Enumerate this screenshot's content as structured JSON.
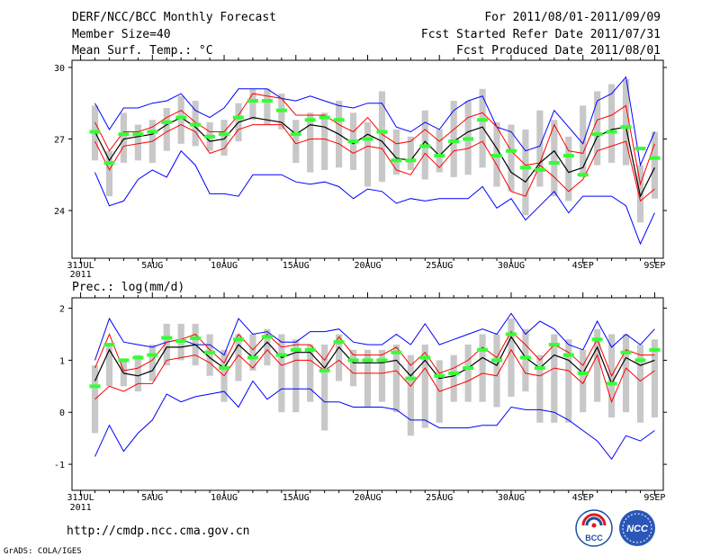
{
  "header": {
    "title": "DERF/NCC/BCC Monthly Forecast",
    "member_size": "Member Size=40",
    "variable": "Mean Surf. Temp.: °C",
    "period": "For 2011/08/01-2011/09/09",
    "started": "Fcst Started Refer Date 2011/07/31",
    "produced": "Fcst Produced Date 2011/08/01"
  },
  "footer": {
    "url": "http://cmdp.ncc.cma.gov.cn",
    "credit": "GrADS: COLA/IGES",
    "logo_bcc": "BCC",
    "logo_ncc": "NCC"
  },
  "colors": {
    "frame": "#000000",
    "bar": "#c8c8c8",
    "mean": "#000000",
    "envelope": "#0000ff",
    "spread": "#ff0000",
    "median": "#33ff33"
  },
  "chart_data": [
    {
      "type": "line",
      "title": "Mean Surf. Temp.: °C",
      "x_start_day": 0,
      "x_labels": [
        {
          "day": 0,
          "text": "31JUL",
          "sub": "2011"
        },
        {
          "day": 5,
          "text": "5AUG"
        },
        {
          "day": 10,
          "text": "10AUG"
        },
        {
          "day": 15,
          "text": "15AUG"
        },
        {
          "day": 20,
          "text": "20AUG"
        },
        {
          "day": 25,
          "text": "25AUG"
        },
        {
          "day": 30,
          "text": "30AUG"
        },
        {
          "day": 35,
          "text": "4SEP"
        },
        {
          "day": 40,
          "text": "9SEP"
        }
      ],
      "xlim": [
        -0.6,
        40.6
      ],
      "ylim": [
        22.0,
        30.3
      ],
      "yticks": [
        24,
        27,
        30
      ],
      "days": [
        1,
        2,
        3,
        4,
        5,
        6,
        7,
        8,
        9,
        10,
        11,
        12,
        13,
        14,
        15,
        16,
        17,
        18,
        19,
        20,
        21,
        22,
        23,
        24,
        25,
        26,
        27,
        28,
        29,
        30,
        31,
        32,
        33,
        34,
        35,
        36,
        37,
        38,
        39,
        40
      ],
      "bar_low": [
        26.1,
        24.6,
        26.0,
        26.1,
        26.0,
        26.5,
        26.8,
        26.7,
        26.5,
        26.3,
        26.9,
        27.8,
        27.6,
        27.4,
        26.0,
        25.6,
        25.7,
        25.8,
        25.7,
        25.0,
        25.2,
        25.5,
        25.7,
        25.3,
        25.6,
        25.4,
        25.5,
        25.8,
        25.0,
        24.8,
        23.8,
        25.0,
        24.6,
        24.4,
        25.4,
        25.9,
        26.0,
        25.9,
        23.5,
        24.5
      ],
      "bar_high": [
        28.4,
        26.5,
        28.1,
        27.6,
        27.8,
        28.3,
        28.8,
        28.6,
        27.7,
        27.8,
        28.5,
        29.1,
        29.1,
        28.9,
        27.8,
        28.1,
        28.1,
        28.6,
        28.1,
        27.7,
        29.0,
        27.4,
        27.1,
        28.2,
        27.4,
        28.6,
        28.6,
        29.1,
        27.7,
        27.6,
        27.4,
        28.2,
        27.8,
        27.1,
        28.4,
        29.0,
        29.3,
        29.5,
        25.9,
        27.3
      ],
      "env_high": [
        28.5,
        27.4,
        28.3,
        28.3,
        28.5,
        28.6,
        28.9,
        28.2,
        27.9,
        28.3,
        29.1,
        29.1,
        29.1,
        28.7,
        28.6,
        28.8,
        28.6,
        28.4,
        28.3,
        28.5,
        28.5,
        27.5,
        27.3,
        27.7,
        27.4,
        28.2,
        28.6,
        28.8,
        27.5,
        27.3,
        26.5,
        26.7,
        28.2,
        27.5,
        26.8,
        28.6,
        28.9,
        29.6,
        25.9,
        27.3
      ],
      "env_low": [
        25.6,
        24.2,
        24.4,
        25.3,
        25.7,
        25.4,
        26.5,
        25.9,
        24.7,
        24.7,
        24.6,
        25.5,
        25.5,
        25.5,
        25.2,
        25.1,
        25.2,
        25.0,
        24.5,
        24.9,
        24.8,
        24.3,
        24.5,
        24.4,
        24.5,
        24.5,
        24.5,
        25.0,
        24.1,
        24.5,
        23.6,
        24.2,
        24.8,
        23.9,
        24.6,
        24.6,
        24.6,
        24.2,
        22.6,
        23.9
      ],
      "spread_high": [
        27.7,
        26.5,
        27.3,
        27.3,
        27.5,
        27.9,
        28.2,
        27.7,
        27.3,
        27.3,
        28.0,
        28.9,
        28.8,
        28.7,
        28.0,
        28.0,
        28.0,
        27.6,
        27.3,
        27.9,
        27.2,
        26.8,
        26.9,
        27.4,
        26.9,
        27.4,
        27.9,
        28.1,
        27.5,
        26.5,
        25.9,
        26.0,
        27.6,
        26.5,
        26.4,
        27.8,
        28.0,
        28.4,
        25.1,
        26.8
      ],
      "spread_low": [
        26.9,
        25.7,
        26.7,
        26.8,
        26.9,
        27.3,
        27.6,
        27.3,
        26.4,
        26.6,
        27.4,
        27.6,
        27.6,
        27.6,
        26.8,
        27.0,
        27.0,
        26.8,
        26.4,
        26.7,
        26.6,
        25.7,
        25.5,
        26.4,
        25.8,
        26.5,
        26.6,
        26.9,
        25.9,
        24.8,
        24.6,
        25.9,
        25.4,
        24.8,
        25.3,
        26.5,
        26.7,
        26.9,
        24.4,
        24.9
      ],
      "mean": [
        27.3,
        26.1,
        27.0,
        27.1,
        27.2,
        27.6,
        27.9,
        27.5,
        26.9,
        27.0,
        27.7,
        27.9,
        27.8,
        27.7,
        27.2,
        27.6,
        27.5,
        27.2,
        26.8,
        27.2,
        26.9,
        26.2,
        26.1,
        26.9,
        26.3,
        26.9,
        27.3,
        27.5,
        26.6,
        25.6,
        25.2,
        26.0,
        26.5,
        25.6,
        25.8,
        27.1,
        27.4,
        27.5,
        24.6,
        25.8
      ],
      "median": [
        27.3,
        26.0,
        27.2,
        27.2,
        27.3,
        27.7,
        27.9,
        27.6,
        27.1,
        27.2,
        27.9,
        28.6,
        28.6,
        28.2,
        27.2,
        27.8,
        27.9,
        27.8,
        26.9,
        27.0,
        27.3,
        26.1,
        26.1,
        26.7,
        26.3,
        26.9,
        27.0,
        27.8,
        26.3,
        26.5,
        25.8,
        25.7,
        26.0,
        26.3,
        25.5,
        27.2,
        27.3,
        27.5,
        26.6,
        26.2
      ]
    },
    {
      "type": "line",
      "title": "Prec.: log(mm/d)",
      "x_labels": [
        {
          "day": 0,
          "text": "31JUL",
          "sub": "2011"
        },
        {
          "day": 5,
          "text": "5AUG"
        },
        {
          "day": 10,
          "text": "10AUG"
        },
        {
          "day": 15,
          "text": "15AUG"
        },
        {
          "day": 20,
          "text": "20AUG"
        },
        {
          "day": 25,
          "text": "25AUG"
        },
        {
          "day": 30,
          "text": "30AUG"
        },
        {
          "day": 35,
          "text": "4SEP"
        },
        {
          "day": 40,
          "text": "9SEP"
        }
      ],
      "xlim": [
        -0.6,
        40.6
      ],
      "ylim": [
        -1.5,
        2.2
      ],
      "yticks": [
        -1,
        0,
        1,
        2
      ],
      "days": [
        1,
        2,
        3,
        4,
        5,
        6,
        7,
        8,
        9,
        10,
        11,
        12,
        13,
        14,
        15,
        16,
        17,
        18,
        19,
        20,
        21,
        22,
        23,
        24,
        25,
        26,
        27,
        28,
        29,
        30,
        31,
        32,
        33,
        34,
        35,
        36,
        37,
        38,
        39,
        40
      ],
      "bar_low": [
        -0.4,
        0.5,
        0.5,
        0.4,
        0.6,
        0.9,
        1.0,
        0.9,
        0.7,
        0.2,
        0.6,
        0.8,
        0.9,
        0.0,
        0.0,
        0.2,
        -0.35,
        0.6,
        0.5,
        0.1,
        0.2,
        0.0,
        -0.45,
        -0.3,
        -0.2,
        0.2,
        0.2,
        0.2,
        0.1,
        0.3,
        0.4,
        -0.2,
        -0.2,
        -0.2,
        0.0,
        0.2,
        -0.1,
        0.0,
        -0.2,
        -0.1
      ],
      "bar_high": [
        0.9,
        1.3,
        1.0,
        1.1,
        1.3,
        1.7,
        1.7,
        1.7,
        1.5,
        1.2,
        1.5,
        1.5,
        1.6,
        1.5,
        1.4,
        1.3,
        1.3,
        1.5,
        1.2,
        1.2,
        1.2,
        1.3,
        1.1,
        1.3,
        1.0,
        1.1,
        1.3,
        1.5,
        1.5,
        1.8,
        1.6,
        1.1,
        1.5,
        1.4,
        1.2,
        1.6,
        1.5,
        1.5,
        1.3,
        1.4
      ],
      "env_high": [
        1.0,
        1.8,
        1.35,
        1.3,
        1.25,
        1.35,
        1.4,
        1.3,
        1.3,
        1.1,
        1.8,
        1.5,
        1.55,
        1.35,
        1.35,
        1.55,
        1.55,
        1.6,
        1.35,
        1.3,
        1.3,
        1.5,
        1.3,
        1.7,
        1.3,
        1.4,
        1.5,
        1.6,
        1.5,
        1.9,
        1.5,
        1.75,
        1.6,
        1.3,
        1.2,
        1.75,
        1.25,
        1.5,
        1.3,
        1.6
      ],
      "env_low": [
        -0.85,
        -0.25,
        -0.75,
        -0.4,
        -0.15,
        0.35,
        0.2,
        0.3,
        0.35,
        0.4,
        0.1,
        0.6,
        0.25,
        0.45,
        0.45,
        0.45,
        0.2,
        0.2,
        0.1,
        0.1,
        0.1,
        0.05,
        -0.15,
        -0.15,
        -0.3,
        -0.3,
        -0.3,
        -0.25,
        -0.25,
        0.1,
        0.05,
        0.05,
        0.0,
        -0.15,
        -0.35,
        -0.55,
        -0.9,
        -0.45,
        -0.55,
        -0.35
      ],
      "spread_high": [
        0.85,
        1.5,
        0.8,
        0.85,
        1.0,
        1.35,
        1.4,
        1.5,
        1.2,
        0.95,
        1.5,
        1.2,
        1.5,
        1.25,
        1.3,
        1.3,
        1.0,
        1.45,
        1.1,
        1.1,
        1.1,
        1.25,
        0.9,
        1.15,
        0.75,
        0.85,
        1.0,
        1.25,
        1.05,
        1.55,
        1.3,
        1.0,
        1.3,
        1.15,
        0.9,
        1.4,
        0.7,
        1.2,
        1.1,
        1.1
      ],
      "spread_low": [
        0.25,
        0.5,
        0.4,
        0.55,
        0.55,
        1.0,
        1.05,
        1.1,
        0.95,
        0.7,
        1.1,
        0.85,
        1.2,
        0.9,
        1.0,
        1.0,
        0.8,
        1.0,
        0.75,
        0.75,
        0.75,
        0.8,
        0.5,
        0.85,
        0.4,
        0.5,
        0.6,
        0.75,
        0.7,
        1.2,
        0.75,
        0.7,
        0.85,
        0.8,
        0.55,
        1.1,
        0.2,
        0.85,
        0.6,
        0.8
      ],
      "mean": [
        0.6,
        1.2,
        0.75,
        0.7,
        0.8,
        1.25,
        1.25,
        1.3,
        1.05,
        0.85,
        1.3,
        1.05,
        1.35,
        1.05,
        1.15,
        1.15,
        0.85,
        1.25,
        0.95,
        0.95,
        0.95,
        1.0,
        0.7,
        1.0,
        0.65,
        0.7,
        0.85,
        1.05,
        0.9,
        1.45,
        1.05,
        0.85,
        1.1,
        1.0,
        0.75,
        1.25,
        0.55,
        1.05,
        0.9,
        1.0
      ],
      "median": [
        0.5,
        1.3,
        1.0,
        1.05,
        1.1,
        1.43,
        1.37,
        1.42,
        1.15,
        0.85,
        1.4,
        1.05,
        1.45,
        1.1,
        1.2,
        1.2,
        0.8,
        1.35,
        1.0,
        1.0,
        1.0,
        1.15,
        0.65,
        1.05,
        0.7,
        0.75,
        0.85,
        1.2,
        1.0,
        1.5,
        1.05,
        0.85,
        1.3,
        1.1,
        0.75,
        1.4,
        0.55,
        1.15,
        1.0,
        1.2
      ]
    }
  ]
}
